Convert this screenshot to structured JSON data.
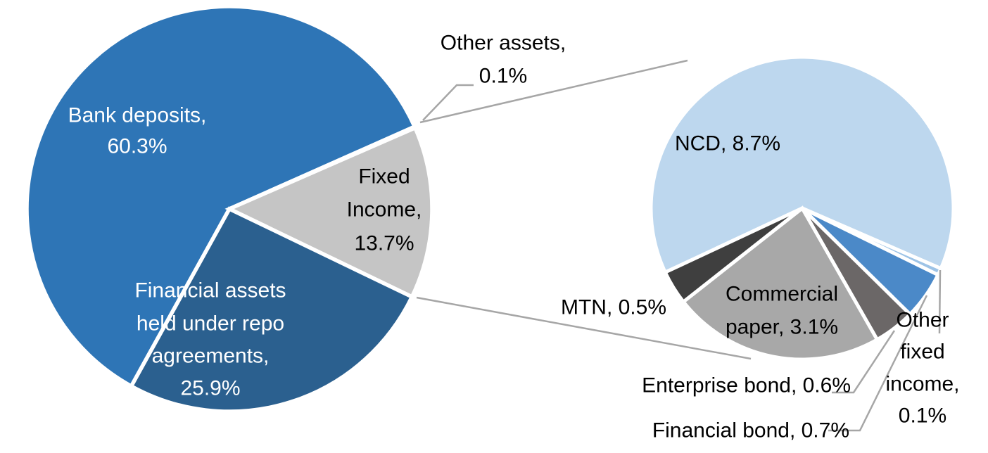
{
  "chart_data": {
    "type": "pie",
    "variant": "pie-of-pie",
    "title": "",
    "background_color": "#FFFFFF",
    "connector_line_color": "#A6A6A6",
    "slice_border_color": "#FFFFFF",
    "legend": "none",
    "main_pie": {
      "units": "% of total assets",
      "total": 100,
      "slices": [
        {
          "id": "bank_deposits",
          "name": "Bank deposits",
          "value": 60.3,
          "color": "#2E75B6",
          "label_lines": [
            "Bank deposits,",
            "60.3%"
          ],
          "label_color": "#FFFFFF"
        },
        {
          "id": "other_assets",
          "name": "Other assets",
          "value": 0.1,
          "color": "#404040",
          "label_lines": [
            "Other assets,",
            "0.1%"
          ],
          "label_color": "#000000"
        },
        {
          "id": "fixed_income",
          "name": "Fixed Income",
          "value": 13.7,
          "color": "#C5C5C5",
          "label_lines": [
            "Fixed",
            "Income,",
            "13.7%"
          ],
          "label_color": "#000000"
        },
        {
          "id": "repo",
          "name": "Financial assets held under repo agreements",
          "value": 25.9,
          "color": "#2B608F",
          "label_lines": [
            "Financial assets",
            "held under repo",
            "agreements,",
            "25.9%"
          ],
          "label_color": "#FFFFFF"
        }
      ]
    },
    "secondary_pie": {
      "group_label": "Fixed Income",
      "total": 13.7,
      "slices": [
        {
          "id": "ncd",
          "name": "NCD",
          "value": 8.7,
          "color": "#BDD7EE",
          "label_lines": [
            "NCD, 8.7%"
          ],
          "label_color": "#000000"
        },
        {
          "id": "other_fixed_income",
          "name": "Other fixed income",
          "value": 0.1,
          "color": "#9DC3E6",
          "label_lines": [
            "Other",
            "fixed",
            "income,",
            "0.1%"
          ],
          "label_color": "#000000"
        },
        {
          "id": "financial_bond",
          "name": "Financial bond",
          "value": 0.7,
          "color": "#4B89C8",
          "label_lines": [
            "Financial bond, 0.7%"
          ],
          "label_color": "#000000"
        },
        {
          "id": "enterprise_bond",
          "name": "Enterprise bond",
          "value": 0.6,
          "color": "#6B6767",
          "label_lines": [
            "Enterprise bond, 0.6%"
          ],
          "label_color": "#000000"
        },
        {
          "id": "commercial_paper",
          "name": "Commercial paper",
          "value": 3.1,
          "color": "#A8A8A8",
          "label_lines": [
            "Commercial",
            "paper, 3.1%"
          ],
          "label_color": "#000000"
        },
        {
          "id": "mtn",
          "name": "MTN",
          "value": 0.5,
          "color": "#3F3F3F",
          "label_lines": [
            "MTN, 0.5%"
          ],
          "label_color": "#000000"
        }
      ]
    }
  }
}
